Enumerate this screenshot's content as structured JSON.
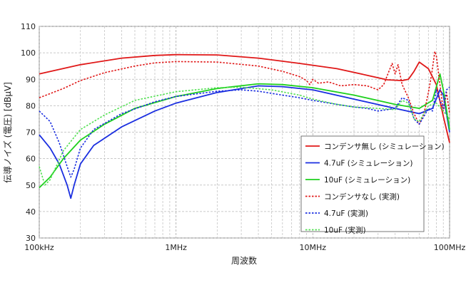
{
  "chart_data": {
    "type": "line",
    "xlabel": "周波数",
    "ylabel": "伝導ノイズ (電圧) [dBµV]",
    "x_scale": "log",
    "xlim": [
      100000,
      100000000
    ],
    "ylim": [
      30,
      110
    ],
    "grid": true,
    "legend_placement": "lower-right",
    "x_ticks": [
      {
        "value": 100000,
        "label": "100kHz"
      },
      {
        "value": 1000000,
        "label": "1MHz"
      },
      {
        "value": 10000000,
        "label": "10MHz"
      },
      {
        "value": 100000000,
        "label": "100MHz"
      }
    ],
    "y_ticks": [
      30,
      40,
      50,
      60,
      70,
      80,
      90,
      100,
      110
    ],
    "series": [
      {
        "name": "コンデンサ無し (シミュレーション)",
        "color": "#e01818",
        "dash": "solid",
        "points": [
          [
            100000,
            92
          ],
          [
            200000,
            95.5
          ],
          [
            400000,
            98
          ],
          [
            700000,
            99
          ],
          [
            1000000,
            99.3
          ],
          [
            2000000,
            99.2
          ],
          [
            4000000,
            98
          ],
          [
            8000000,
            96
          ],
          [
            15000000,
            94
          ],
          [
            25000000,
            91.5
          ],
          [
            35000000,
            89.8
          ],
          [
            45000000,
            89.5
          ],
          [
            50000000,
            90
          ],
          [
            55000000,
            93
          ],
          [
            60000000,
            96.5
          ],
          [
            70000000,
            94
          ],
          [
            80000000,
            88
          ],
          [
            90000000,
            76
          ],
          [
            100000000,
            66
          ]
        ]
      },
      {
        "name": "4.7uF (シミュレーション)",
        "color": "#1a2ee0",
        "dash": "solid",
        "points": [
          [
            100000,
            69
          ],
          [
            120000,
            64
          ],
          [
            140000,
            58
          ],
          [
            160000,
            50
          ],
          [
            170000,
            45
          ],
          [
            180000,
            50
          ],
          [
            200000,
            58
          ],
          [
            250000,
            65
          ],
          [
            400000,
            72
          ],
          [
            700000,
            78
          ],
          [
            1000000,
            81
          ],
          [
            2000000,
            85
          ],
          [
            4000000,
            87.5
          ],
          [
            6000000,
            87.2
          ],
          [
            10000000,
            86
          ],
          [
            20000000,
            82.5
          ],
          [
            40000000,
            79
          ],
          [
            60000000,
            77
          ],
          [
            75000000,
            79
          ],
          [
            85000000,
            86
          ],
          [
            90000000,
            84
          ],
          [
            100000000,
            70
          ]
        ]
      },
      {
        "name": "10uF (シミュレーション)",
        "color": "#1ed01e",
        "dash": "solid",
        "points": [
          [
            100000,
            49
          ],
          [
            120000,
            53
          ],
          [
            150000,
            60
          ],
          [
            200000,
            67
          ],
          [
            300000,
            73
          ],
          [
            500000,
            79
          ],
          [
            1000000,
            83.5
          ],
          [
            2000000,
            86.5
          ],
          [
            4000000,
            88.3
          ],
          [
            6000000,
            88
          ],
          [
            10000000,
            86.8
          ],
          [
            20000000,
            84
          ],
          [
            40000000,
            80.5
          ],
          [
            60000000,
            79
          ],
          [
            75000000,
            82
          ],
          [
            85000000,
            92
          ],
          [
            90000000,
            86
          ],
          [
            100000000,
            71
          ]
        ]
      },
      {
        "name": "コンデンサなし (実測)",
        "color": "#e01818",
        "dash": "dotted",
        "points": [
          [
            100000,
            83
          ],
          [
            150000,
            86.5
          ],
          [
            200000,
            89.5
          ],
          [
            300000,
            92.5
          ],
          [
            500000,
            95
          ],
          [
            700000,
            96.2
          ],
          [
            1000000,
            96.7
          ],
          [
            2000000,
            96.5
          ],
          [
            4000000,
            95
          ],
          [
            6000000,
            93
          ],
          [
            8000000,
            91
          ],
          [
            9000000,
            89.5
          ],
          [
            9500000,
            88
          ],
          [
            10000000,
            90
          ],
          [
            11000000,
            88.5
          ],
          [
            13000000,
            89
          ],
          [
            16000000,
            87.5
          ],
          [
            20000000,
            88
          ],
          [
            25000000,
            87.5
          ],
          [
            30000000,
            86
          ],
          [
            33000000,
            88
          ],
          [
            36000000,
            93
          ],
          [
            38000000,
            96
          ],
          [
            40000000,
            92
          ],
          [
            42000000,
            95.5
          ],
          [
            45000000,
            88
          ],
          [
            50000000,
            83
          ],
          [
            55000000,
            77
          ],
          [
            60000000,
            73
          ],
          [
            65000000,
            77
          ],
          [
            70000000,
            85
          ],
          [
            74000000,
            92
          ],
          [
            78000000,
            100.5
          ],
          [
            80000000,
            99
          ],
          [
            85000000,
            88
          ],
          [
            90000000,
            78
          ],
          [
            95000000,
            85
          ],
          [
            100000000,
            77
          ]
        ]
      },
      {
        "name": "4.7uF (実測)",
        "color": "#1a2ee0",
        "dash": "dotted",
        "points": [
          [
            100000,
            78
          ],
          [
            120000,
            74
          ],
          [
            140000,
            66
          ],
          [
            160000,
            57
          ],
          [
            170000,
            53
          ],
          [
            180000,
            56
          ],
          [
            200000,
            64
          ],
          [
            250000,
            71
          ],
          [
            400000,
            77
          ],
          [
            700000,
            81.5
          ],
          [
            1000000,
            83.5
          ],
          [
            2000000,
            85.5
          ],
          [
            3000000,
            86
          ],
          [
            4000000,
            85.5
          ],
          [
            6000000,
            84
          ],
          [
            8000000,
            83
          ],
          [
            10000000,
            82
          ],
          [
            15000000,
            80.5
          ],
          [
            20000000,
            79.5
          ],
          [
            25000000,
            79
          ],
          [
            30000000,
            78
          ],
          [
            40000000,
            79
          ],
          [
            45000000,
            83
          ],
          [
            50000000,
            82
          ],
          [
            55000000,
            75
          ],
          [
            60000000,
            73
          ],
          [
            65000000,
            76
          ],
          [
            70000000,
            79
          ],
          [
            75000000,
            78
          ],
          [
            80000000,
            86
          ],
          [
            85000000,
            82
          ],
          [
            90000000,
            79
          ],
          [
            95000000,
            86
          ],
          [
            100000000,
            87
          ]
        ]
      },
      {
        "name": "10uF (実測)",
        "color": "#52e052",
        "dash": "dotted",
        "points": [
          [
            100000,
            57
          ],
          [
            110000,
            50
          ],
          [
            120000,
            52
          ],
          [
            150000,
            63
          ],
          [
            200000,
            71
          ],
          [
            300000,
            76.5
          ],
          [
            500000,
            82
          ],
          [
            1000000,
            85.3
          ],
          [
            2000000,
            86.8
          ],
          [
            3000000,
            87
          ],
          [
            5000000,
            86
          ],
          [
            8000000,
            84
          ],
          [
            10000000,
            82.5
          ],
          [
            15000000,
            80.5
          ],
          [
            20000000,
            79.5
          ],
          [
            30000000,
            79
          ],
          [
            40000000,
            78.5
          ],
          [
            45000000,
            82
          ],
          [
            50000000,
            81
          ],
          [
            55000000,
            75
          ],
          [
            60000000,
            74
          ],
          [
            70000000,
            80
          ],
          [
            80000000,
            81
          ],
          [
            90000000,
            78
          ],
          [
            100000000,
            75
          ]
        ]
      }
    ]
  }
}
